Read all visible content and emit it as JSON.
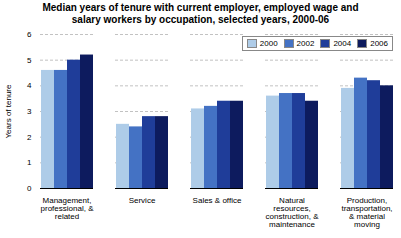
{
  "chart_data": {
    "type": "bar",
    "title": "Median years of tenure with current employer, employed wage and\nsalary workers by occupation, selected years, 2000-06",
    "categories": [
      "Management,\nprofessional, &\nrelated",
      "Service",
      "Sales & office",
      "Natural\nresources,\nconstruction, &\nmaintenance",
      "Production,\ntransportation,\n& material\nmoving"
    ],
    "series": [
      {
        "name": "2000",
        "color": "#aecce8",
        "values": [
          4.6,
          2.5,
          3.1,
          3.6,
          3.9
        ]
      },
      {
        "name": "2002",
        "color": "#4472c4",
        "values": [
          4.6,
          2.4,
          3.2,
          3.7,
          4.3
        ]
      },
      {
        "name": "2004",
        "color": "#1f3d99",
        "values": [
          5.0,
          2.8,
          3.4,
          3.7,
          4.2
        ]
      },
      {
        "name": "2006",
        "color": "#0d1b5e",
        "values": [
          5.2,
          2.8,
          3.4,
          3.4,
          4.0
        ]
      }
    ],
    "ylabel": "Years of tenure",
    "ylim": [
      0,
      6
    ],
    "yticks": [
      0,
      1,
      2,
      3,
      4,
      5,
      6
    ],
    "grid": true,
    "legend": "upper right"
  }
}
